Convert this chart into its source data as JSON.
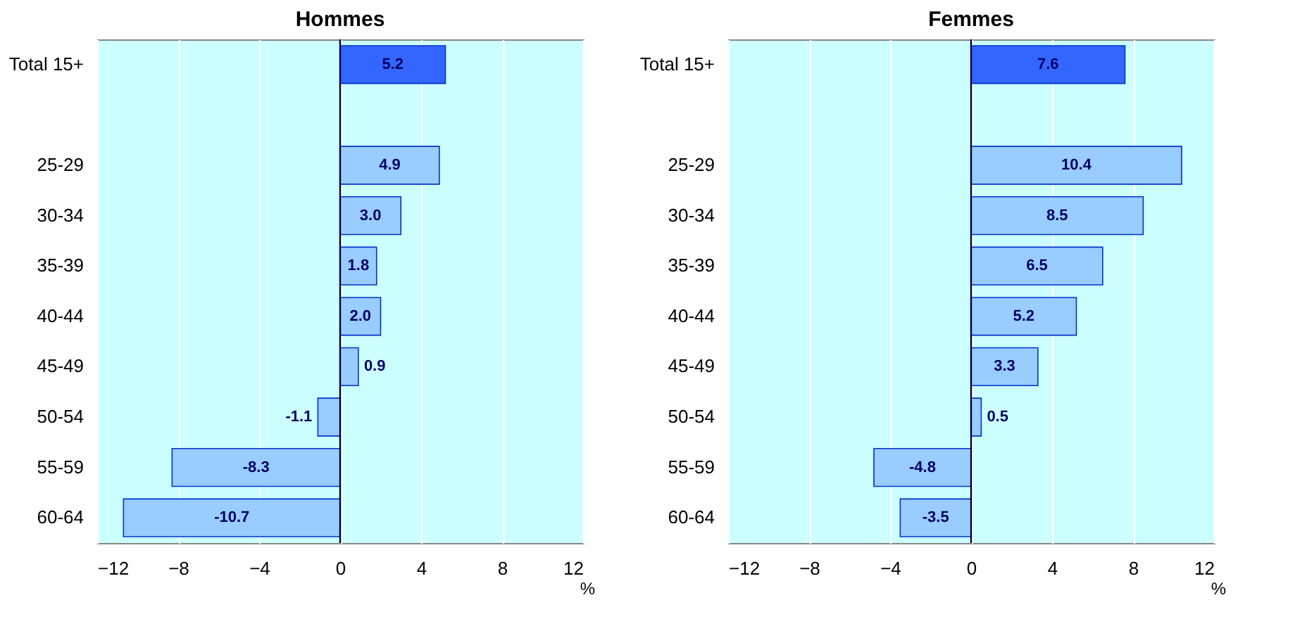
{
  "chart_data": [
    {
      "type": "bar",
      "orientation": "horizontal",
      "title": "Hommes",
      "xlabel": "%",
      "categories": [
        "Total 15+",
        null,
        "25-29",
        "30-34",
        "35-39",
        "40-44",
        "45-49",
        "50-54",
        "55-59",
        "60-64"
      ],
      "values": [
        5.2,
        null,
        4.9,
        3.0,
        1.8,
        2.0,
        0.9,
        -1.1,
        -8.3,
        -10.7
      ],
      "value_labels": [
        "5.2",
        null,
        "4.9",
        "3.0",
        "1.8",
        "2.0",
        "0.9",
        "-1.1",
        "-8.3",
        "-10.7"
      ],
      "colors": [
        "#3366ff",
        null,
        "#99ccff",
        "#99ccff",
        "#99ccff",
        "#99ccff",
        "#99ccff",
        "#99ccff",
        "#99ccff",
        "#99ccff"
      ],
      "xlim": [
        -12,
        12
      ],
      "xticks": [
        -12,
        -8,
        -4,
        0,
        4,
        8,
        12
      ],
      "grid": "x",
      "legend": false
    },
    {
      "type": "bar",
      "orientation": "horizontal",
      "title": "Femmes",
      "xlabel": "%",
      "categories": [
        "Total 15+",
        null,
        "25-29",
        "30-34",
        "35-39",
        "40-44",
        "45-49",
        "50-54",
        "55-59",
        "60-64"
      ],
      "values": [
        7.6,
        null,
        10.4,
        8.5,
        6.5,
        5.2,
        3.3,
        0.5,
        -4.8,
        -3.5
      ],
      "value_labels": [
        "7.6",
        null,
        "10.4",
        "8.5",
        "6.5",
        "5.2",
        "3.3",
        "0.5",
        "-4.8",
        "-3.5"
      ],
      "colors": [
        "#3366ff",
        null,
        "#99ccff",
        "#99ccff",
        "#99ccff",
        "#99ccff",
        "#99ccff",
        "#99ccff",
        "#99ccff",
        "#99ccff"
      ],
      "xlim": [
        -12,
        12
      ],
      "xticks": [
        -12,
        -8,
        -4,
        0,
        4,
        8,
        12
      ],
      "grid": "x",
      "legend": false
    }
  ]
}
